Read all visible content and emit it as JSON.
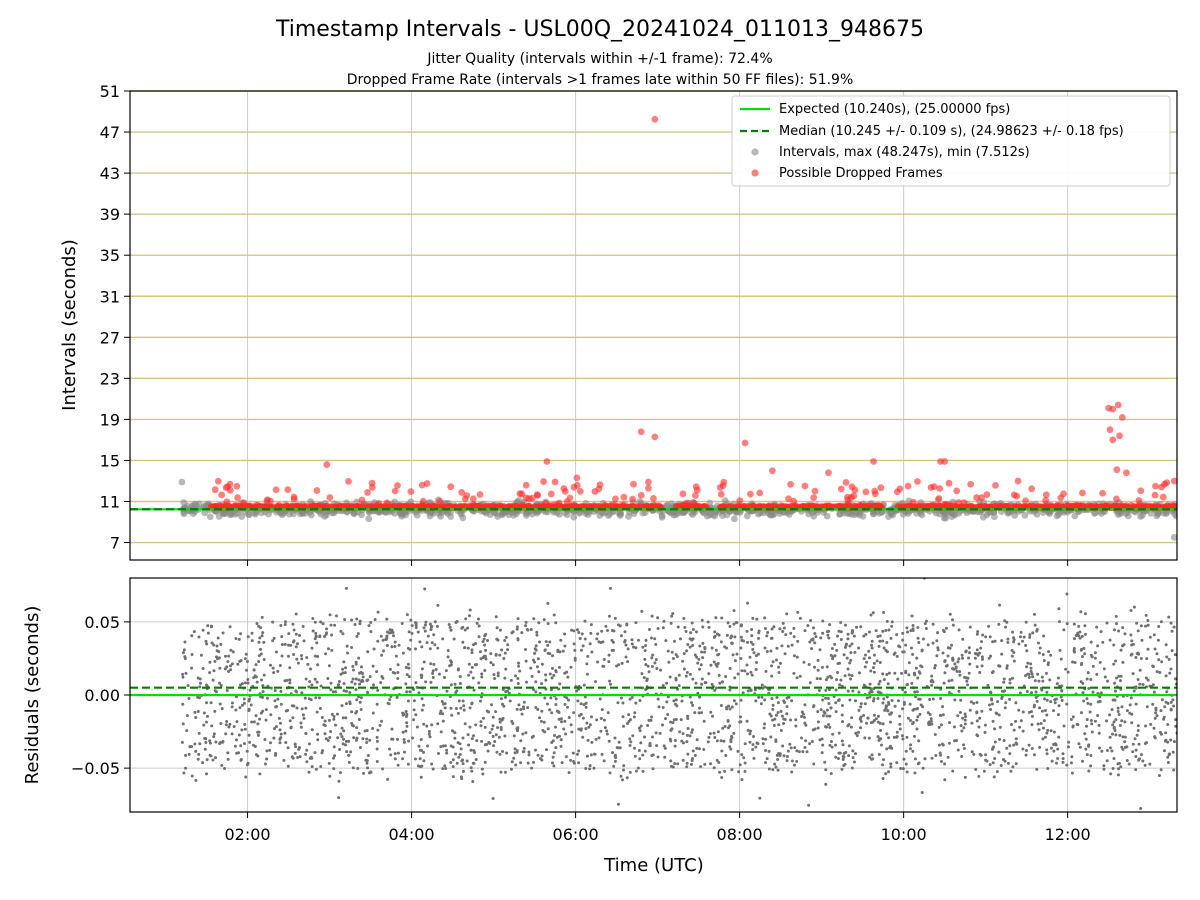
{
  "figure": {
    "title": "Timestamp Intervals - USL00Q_20241024_011013_948675",
    "subtitle_1": "Jitter Quality (intervals within +/-1 frame): 72.4%",
    "subtitle_2": "Dropped Frame Rate (intervals >1 frames late within 50 FF files): 51.9%"
  },
  "chart_data": [
    {
      "type": "scatter",
      "panel": "intervals",
      "ylabel": "Intervals (seconds)",
      "xlabel": "",
      "xlim": [
        "00:34",
        "13:20"
      ],
      "ylim": [
        5.3,
        51
      ],
      "yticks": [
        "7",
        "11",
        "15",
        "19",
        "23",
        "27",
        "31",
        "35",
        "39",
        "43",
        "47",
        "51"
      ],
      "xticks": [
        "02:00",
        "04:00",
        "06:00",
        "08:00",
        "10:00",
        "12:00"
      ],
      "grid": true,
      "horizontal_grid_color": "#d4c48a",
      "legend_position": "top-right",
      "legend": [
        {
          "label": "Expected (10.240s), (25.00000 fps)",
          "style": "solid-line",
          "color": "#00e000"
        },
        {
          "label": "Median (10.245 +/- 0.109 s), (24.98623 +/- 0.18 fps)",
          "style": "dashed-line",
          "color": "#008000"
        },
        {
          "label": "Intervals, max (48.247s), min (7.512s)",
          "style": "marker",
          "color": "#888888"
        },
        {
          "label": "Possible Dropped Frames",
          "style": "marker",
          "color": "#ff2a2a"
        }
      ],
      "reference_lines": [
        {
          "name": "Expected",
          "y": 10.24,
          "color": "#00e000",
          "style": "solid"
        },
        {
          "name": "Median",
          "y": 10.245,
          "color": "#008000",
          "style": "dashed"
        }
      ],
      "data_span": {
        "start": "01:12",
        "end": "13:20"
      },
      "series": [
        {
          "name": "Intervals, max (48.247s), min (7.512s)",
          "color": "#888888",
          "note_points": [
            {
              "x": "01:12",
              "y": 12.9
            },
            {
              "x": "13:18",
              "y": 7.51
            }
          ],
          "band": {
            "y_min": 8.8,
            "y_max": 11.8
          }
        },
        {
          "name": "Possible Dropped Frames",
          "color": "#ff2a2a",
          "points": [
            {
              "x": "06:58",
              "y": 48.247
            },
            {
              "x": "06:48",
              "y": 17.8
            },
            {
              "x": "06:58",
              "y": 17.3
            },
            {
              "x": "08:04",
              "y": 16.7
            },
            {
              "x": "12:30",
              "y": 20.1
            },
            {
              "x": "12:33",
              "y": 20.0
            },
            {
              "x": "12:37",
              "y": 20.4
            },
            {
              "x": "12:40",
              "y": 19.2
            },
            {
              "x": "12:31",
              "y": 18.0
            },
            {
              "x": "12:33",
              "y": 17.0
            },
            {
              "x": "12:38",
              "y": 17.4
            },
            {
              "x": "09:38",
              "y": 14.9
            },
            {
              "x": "05:39",
              "y": 14.9
            },
            {
              "x": "10:27",
              "y": 14.9
            },
            {
              "x": "02:58",
              "y": 14.6
            },
            {
              "x": "10:30",
              "y": 14.9
            },
            {
              "x": "08:24",
              "y": 14.0
            },
            {
              "x": "09:05",
              "y": 13.8
            },
            {
              "x": "12:36",
              "y": 14.1
            },
            {
              "x": "12:43",
              "y": 13.8
            },
            {
              "x": "13:18",
              "y": 13.0
            },
            {
              "x": "06:01",
              "y": 13.3
            }
          ],
          "band": {
            "y_min": 9.9,
            "y_max": 13.0
          }
        }
      ]
    },
    {
      "type": "scatter",
      "panel": "residuals",
      "ylabel": "Residuals (seconds)",
      "xlabel": "Time (UTC)",
      "xlim": [
        "00:34",
        "13:20"
      ],
      "ylim": [
        -0.08,
        0.08
      ],
      "yticks": [
        "−0.05",
        "0.00",
        "0.05"
      ],
      "xticks": [
        "02:00",
        "04:00",
        "06:00",
        "08:00",
        "10:00",
        "12:00"
      ],
      "grid": true,
      "reference_lines": [
        {
          "name": "Expected",
          "y": 0.0,
          "color": "#00e000",
          "style": "solid"
        },
        {
          "name": "Median",
          "y": 0.005,
          "color": "#008000",
          "style": "dashed"
        }
      ],
      "series": [
        {
          "name": "",
          "color": "#707070",
          "band": {
            "y_min": -0.08,
            "y_max": 0.08
          }
        }
      ]
    }
  ]
}
